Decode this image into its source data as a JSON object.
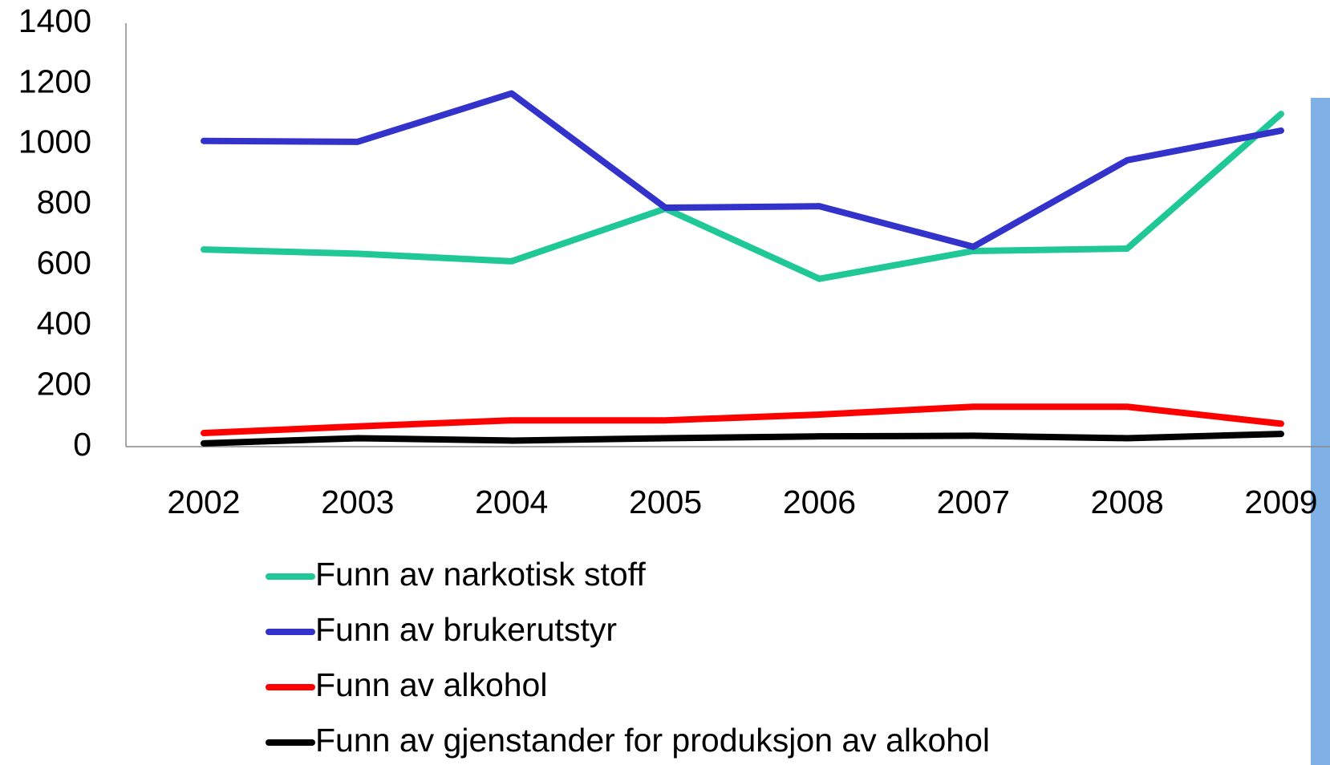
{
  "chart_data": {
    "type": "line",
    "categories": [
      "2002",
      "2003",
      "2004",
      "2005",
      "2006",
      "2007",
      "2008",
      "2009"
    ],
    "series": [
      {
        "name": "Funn av narkotisk stoff",
        "color": "#1fc896",
        "values": [
          652,
          638,
          613,
          787,
          555,
          647,
          655,
          1100
        ]
      },
      {
        "name": "Funn av brukerutstyr",
        "color": "#3333cc",
        "values": [
          1011,
          1008,
          1168,
          790,
          795,
          661,
          947,
          1045
        ]
      },
      {
        "name": "Funn av alkohol",
        "color": "#ff0000",
        "values": [
          45,
          67,
          87,
          87,
          106,
          132,
          132,
          76
        ]
      },
      {
        "name": "Funn av gjenstander for produksjon av alkohol",
        "color": "#000000",
        "values": [
          11,
          28,
          20,
          28,
          34,
          36,
          28,
          42
        ]
      }
    ],
    "ylim": [
      0,
      1400
    ],
    "yticks": [
      0,
      200,
      400,
      600,
      800,
      1000,
      1200,
      1400
    ],
    "grid": false,
    "legend": "bottom"
  }
}
